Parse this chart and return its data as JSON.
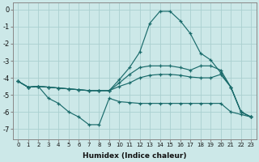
{
  "xlabel": "Humidex (Indice chaleur)",
  "bg_color": "#cce8e8",
  "grid_color": "#aad0d0",
  "line_color": "#1a6b6b",
  "xlim": [
    -0.5,
    23.5
  ],
  "ylim": [
    -7.6,
    0.4
  ],
  "yticks": [
    0,
    -1,
    -2,
    -3,
    -4,
    -5,
    -6,
    -7
  ],
  "xticks": [
    0,
    1,
    2,
    3,
    4,
    5,
    6,
    7,
    8,
    9,
    10,
    11,
    12,
    13,
    14,
    15,
    16,
    17,
    18,
    19,
    20,
    21,
    22,
    23
  ],
  "line1_x": [
    0,
    1,
    2,
    3,
    4,
    5,
    6,
    7,
    8,
    9,
    10,
    11,
    12,
    13,
    14,
    15,
    16,
    17,
    18,
    19,
    20,
    21,
    22,
    23
  ],
  "line1_y": [
    -4.2,
    -4.55,
    -4.5,
    -4.55,
    -4.6,
    -4.65,
    -4.7,
    -4.75,
    -4.75,
    -4.75,
    -4.1,
    -3.4,
    -2.5,
    -0.8,
    -0.1,
    -0.1,
    -0.65,
    -1.4,
    -2.55,
    -2.95,
    -3.7,
    -4.55,
    -6.0,
    -6.3
  ],
  "line2_x": [
    0,
    1,
    2,
    3,
    4,
    5,
    6,
    7,
    8,
    9,
    10,
    11,
    12,
    13,
    14,
    15,
    16,
    17,
    18,
    19,
    20,
    21,
    22,
    23
  ],
  "line2_y": [
    -4.2,
    -4.55,
    -4.5,
    -4.55,
    -4.6,
    -4.65,
    -4.7,
    -4.75,
    -4.75,
    -4.75,
    -4.3,
    -3.8,
    -3.4,
    -3.3,
    -3.3,
    -3.3,
    -3.4,
    -3.55,
    -3.3,
    -3.3,
    -3.55,
    -4.55,
    -6.0,
    -6.3
  ],
  "line3_x": [
    0,
    1,
    2,
    3,
    4,
    5,
    6,
    7,
    8,
    9,
    10,
    11,
    12,
    13,
    14,
    15,
    16,
    17,
    18,
    19,
    20,
    21,
    22,
    23
  ],
  "line3_y": [
    -4.2,
    -4.55,
    -4.5,
    -4.55,
    -4.6,
    -4.65,
    -4.7,
    -4.75,
    -4.75,
    -4.75,
    -4.5,
    -4.3,
    -4.0,
    -3.85,
    -3.8,
    -3.8,
    -3.85,
    -3.95,
    -4.0,
    -4.0,
    -3.8,
    -4.55,
    -6.0,
    -6.3
  ],
  "line4_x": [
    0,
    1,
    2,
    3,
    4,
    5,
    6,
    7,
    8,
    9,
    10,
    11,
    12,
    13,
    14,
    15,
    16,
    17,
    18,
    19,
    20,
    21,
    22,
    23
  ],
  "line4_y": [
    -4.2,
    -4.55,
    -4.5,
    -5.2,
    -5.5,
    -6.0,
    -6.3,
    -6.75,
    -6.75,
    -5.2,
    -5.4,
    -5.45,
    -5.5,
    -5.5,
    -5.5,
    -5.5,
    -5.5,
    -5.5,
    -5.5,
    -5.5,
    -5.5,
    -6.0,
    -6.15,
    -6.3
  ]
}
